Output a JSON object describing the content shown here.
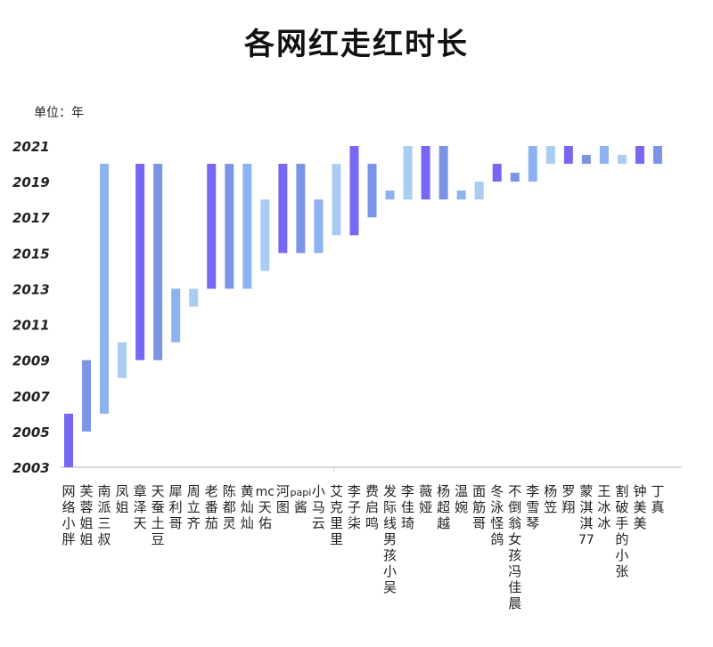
{
  "chart_data": {
    "type": "bar",
    "subtype": "floating-range",
    "title": "各网红走红时长",
    "ylabel": "单位：年",
    "xlabel": "",
    "ylim": [
      2003,
      2021
    ],
    "yticks": [
      2003,
      2005,
      2007,
      2009,
      2011,
      2013,
      2015,
      2017,
      2019,
      2021
    ],
    "grid": false,
    "colors": [
      "#7767f2",
      "#7b95e6",
      "#8db2f0",
      "#a9cdf1"
    ],
    "categories": [
      "网络小胖",
      "芙蓉姐姐",
      "南派三叔",
      "凤姐",
      "章泽天",
      "天蚕土豆",
      "犀利哥",
      "周立齐",
      "老番茄",
      "陈都灵",
      "黄灿灿",
      "mc天佑",
      "河图",
      "papi酱",
      "小马云",
      "艾克里里",
      "李子柒",
      "费启鸣",
      "发际线男孩小吴",
      "李佳琦",
      "薇娅",
      "杨超越",
      "温婉",
      "面筋哥",
      "冬泳怪鸽",
      "不倒翁女孩冯佳晨",
      "李雪琴",
      "杨笠",
      "罗翔",
      "蒙淇淇77",
      "王冰冰",
      "割破手的小张",
      "钟美美",
      "丁真"
    ],
    "start": [
      2003,
      2005,
      2006,
      2008,
      2009,
      2009,
      2010,
      2012,
      2013,
      2013,
      2013,
      2014,
      2015,
      2015,
      2015,
      2016,
      2016,
      2017,
      2018,
      2018,
      2018,
      2018,
      2018,
      2018,
      2019,
      2019,
      2019,
      2020,
      2020,
      2020,
      2020,
      2020,
      2020,
      2020
    ],
    "end": [
      2006,
      2009,
      2020,
      2010,
      2020,
      2020,
      2013,
      2013,
      2020,
      2020,
      2020,
      2018,
      2020,
      2020,
      2018,
      2020,
      2021,
      2020,
      2018.5,
      2021,
      2021,
      2021,
      2018.5,
      2019,
      2020,
      2019.5,
      2021,
      2021,
      2021,
      2020.5,
      2021,
      2020.5,
      2021,
      2021
    ]
  }
}
